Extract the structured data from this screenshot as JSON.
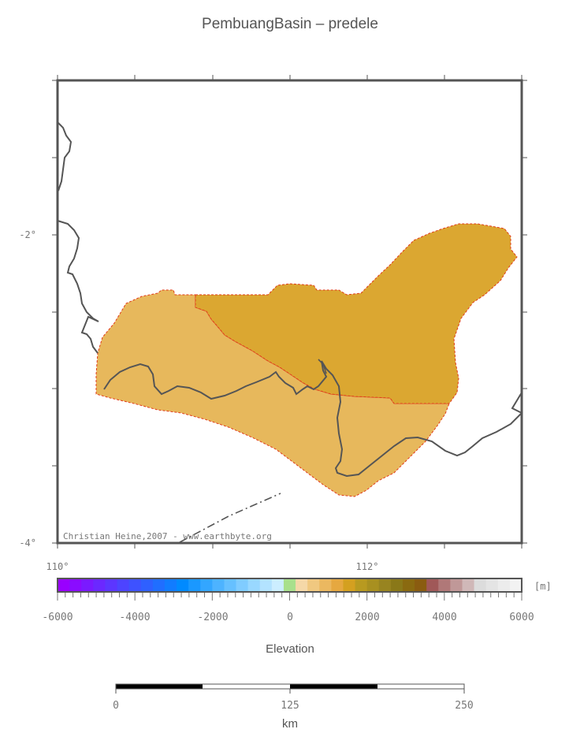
{
  "title": "PembuangBasin – predele",
  "credit": "Christian Heine,2007 - www.earthbyte.org",
  "axes": {
    "lon_labels": [
      "110°",
      "112°"
    ],
    "lat_labels": [
      "-2°",
      "-4°"
    ]
  },
  "colorbar": {
    "unit": "[m]",
    "tick_labels": [
      "-6000",
      "-4000",
      "-2000",
      "0",
      "2000",
      "4000",
      "6000"
    ],
    "label": "Elevation",
    "colors": [
      "#9900ff",
      "#8a0cff",
      "#7a1aff",
      "#6b28ff",
      "#5c36ff",
      "#4d44ff",
      "#3e52ff",
      "#2f60ff",
      "#206eff",
      "#117cff",
      "#008aff",
      "#1a98ff",
      "#33a6ff",
      "#4db3ff",
      "#66c0ff",
      "#80ccff",
      "#99d8ff",
      "#b3e3ff",
      "#cceeff",
      "#a8e08c",
      "#f5d8a8",
      "#f0c880",
      "#ebb860",
      "#e6a840",
      "#d4a020",
      "#b89a20",
      "#a89020",
      "#988420",
      "#8a7818",
      "#8a6a10",
      "#8a5c10",
      "#a05858",
      "#b07878",
      "#c09898",
      "#d0b8b8",
      "#dcdcdc",
      "#e4e4e4",
      "#ececec",
      "#f2f2f2"
    ]
  },
  "scalebar": {
    "tick_labels": [
      "0",
      "125",
      "250"
    ],
    "unit": "km"
  },
  "legend_colors": {
    "low_land": "#e7b85c",
    "high_land": "#dba731",
    "outline": "#e03a1a",
    "coast": "#555555",
    "frame": "#555555"
  }
}
